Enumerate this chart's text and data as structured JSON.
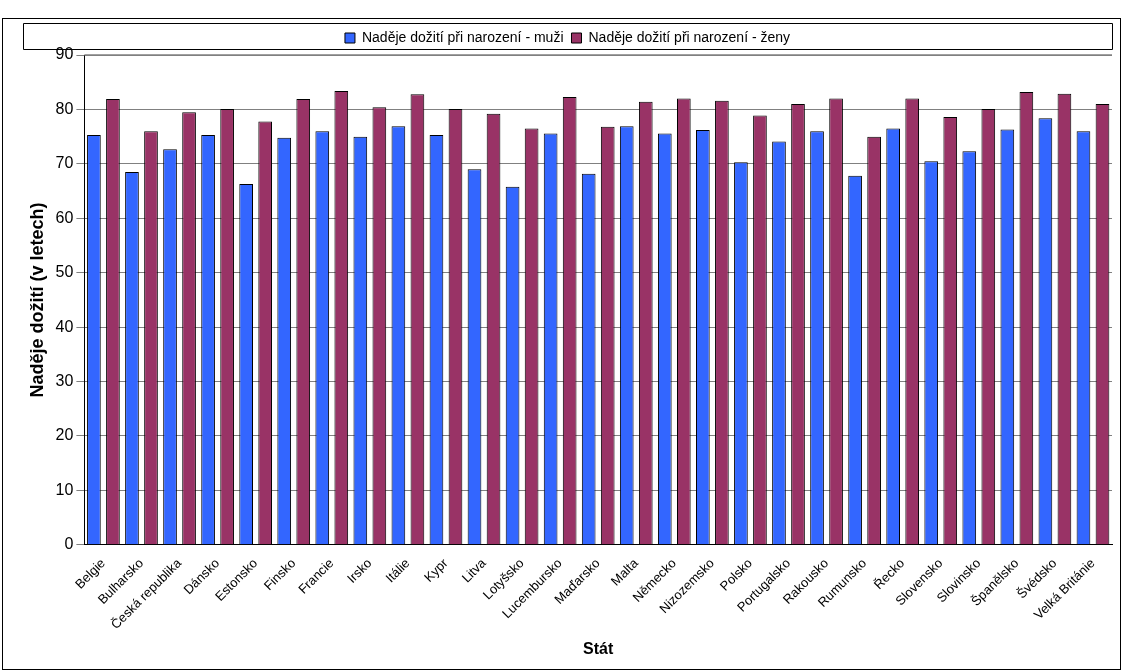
{
  "chart_data": {
    "type": "bar",
    "xlabel": "Stát",
    "ylabel": "Naděje dožití (v letech)",
    "categories": [
      "Belgie",
      "Bulharsko",
      "Česká republika",
      "Dánsko",
      "Estonsko",
      "Finsko",
      "Francie",
      "Irsko",
      "Itálie",
      "Kypr",
      "Litva",
      "Lotyšsko",
      "Lucembursko",
      "Maďarsko",
      "Malta",
      "Německo",
      "Nizozemsko",
      "Polsko",
      "Portugalsko",
      "Rakousko",
      "Rumunsko",
      "Řecko",
      "Slovensko",
      "Slovinsko",
      "Španělsko",
      "Švédsko",
      "Velká Británie"
    ],
    "series": [
      {
        "name": "Naděje dožití při narození - muži",
        "color": "#3366ff",
        "values": [
          75.3,
          68.5,
          72.7,
          75.3,
          66.3,
          74.8,
          76,
          75,
          76.9,
          75.3,
          69,
          65.8,
          75.6,
          68.2,
          76.9,
          75.6,
          76.2,
          70.3,
          74.1,
          76,
          67.8,
          76.5,
          70.5,
          72.3,
          76.3,
          78.4,
          76
        ]
      },
      {
        "name": "Naděje dožití při narození - ženy",
        "color": "#993366",
        "values": [
          81.9,
          76,
          79.5,
          80.1,
          77.8,
          81.9,
          83.4,
          80.4,
          82.8,
          80.1,
          79.2,
          76.5,
          82.3,
          76.8,
          81.4,
          82,
          81.6,
          78.9,
          81,
          82,
          75,
          82,
          78.6,
          80.1,
          83.2,
          82.9,
          81
        ]
      }
    ],
    "ylim": [
      0,
      90
    ],
    "yticks": [
      0,
      10,
      20,
      30,
      40,
      50,
      60,
      70,
      80,
      90
    ],
    "grid": "y",
    "legend": "top"
  }
}
